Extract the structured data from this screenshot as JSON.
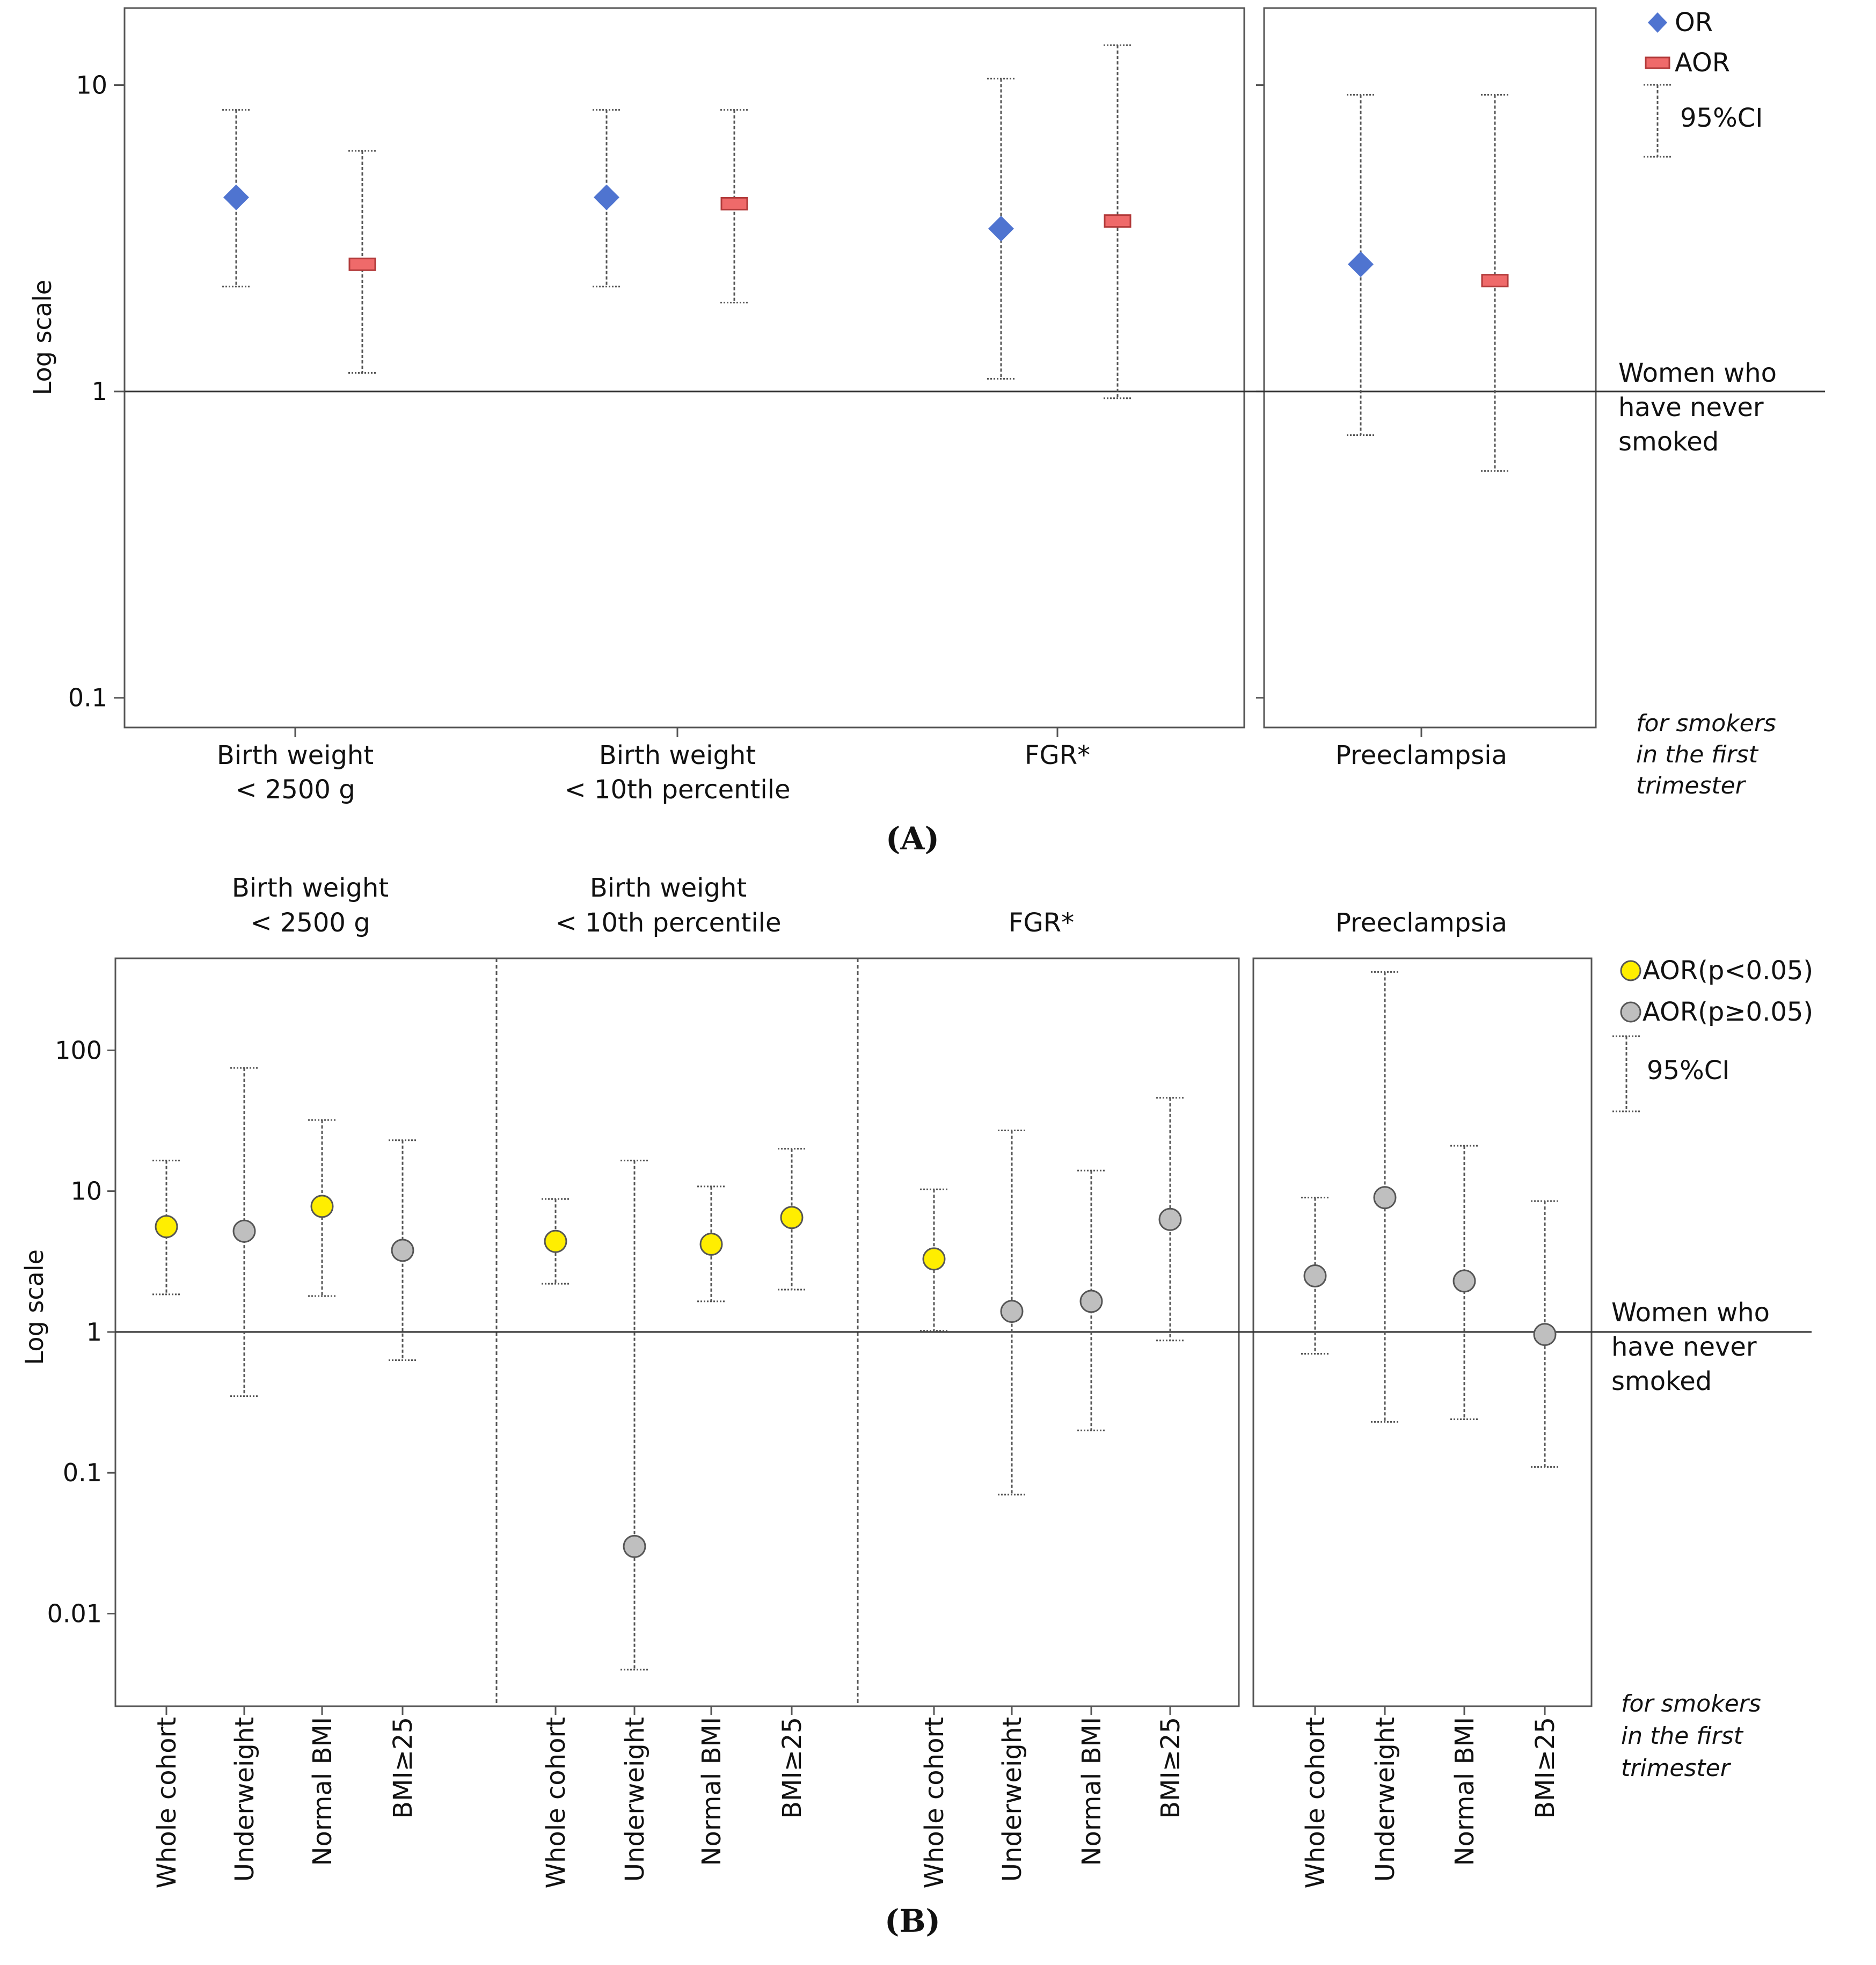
{
  "panel_labels": {
    "a": "(A)",
    "b": "(B)"
  },
  "chart_data": [
    {
      "type": "scatter",
      "panel": "A",
      "y_scale": "log",
      "ylabel": "Log scale",
      "yticks": [
        {
          "value": 10,
          "label": "10"
        },
        {
          "value": 1,
          "label": "1"
        },
        {
          "value": 0.1,
          "label": "0.1"
        }
      ],
      "ylim": [
        0.08,
        16
      ],
      "reference": {
        "value": 1,
        "label_lines": [
          "Women who",
          "have never",
          "smoked"
        ]
      },
      "footnote_lines": [
        "for smokers",
        "in the first",
        "trimester"
      ],
      "legend": {
        "or": "OR",
        "aor": "AOR",
        "ci": "95%CI"
      },
      "colors": {
        "or": "#4f74d0",
        "aor": "#ef6a6a",
        "aor_border": "#b23a3a"
      },
      "groups": [
        {
          "label_lines": [
            "Birth weight",
            "< 2500 g"
          ],
          "or": {
            "value": 4.3,
            "ci": [
              2.2,
              8.3
            ]
          },
          "aor": {
            "value": 2.6,
            "ci": [
              1.15,
              6.1
            ]
          }
        },
        {
          "label_lines": [
            "Birth weight",
            "< 10th percentile"
          ],
          "or": {
            "value": 4.3,
            "ci": [
              2.2,
              8.3
            ]
          },
          "aor": {
            "value": 4.1,
            "ci": [
              1.95,
              8.3
            ]
          }
        },
        {
          "label_lines": [
            "FGR*"
          ],
          "or": {
            "value": 3.4,
            "ci": [
              1.1,
              10.5
            ]
          },
          "aor": {
            "value": 3.6,
            "ci": [
              0.95,
              13.5
            ]
          }
        },
        {
          "label_lines": [
            "Preeclampsia"
          ],
          "or": {
            "value": 2.6,
            "ci": [
              0.72,
              9.3
            ]
          },
          "aor": {
            "value": 2.3,
            "ci": [
              0.55,
              9.3
            ]
          }
        }
      ]
    },
    {
      "type": "scatter",
      "panel": "B",
      "y_scale": "log",
      "ylabel": "Log scale",
      "yticks": [
        {
          "value": 100,
          "label": "100"
        },
        {
          "value": 10,
          "label": "10"
        },
        {
          "value": 1,
          "label": "1"
        },
        {
          "value": 0.1,
          "label": "0.1"
        },
        {
          "value": 0.01,
          "label": "0.01"
        }
      ],
      "ylim": [
        0.0022,
        450
      ],
      "reference": {
        "value": 1,
        "label_lines": [
          "Women who",
          "have never",
          "smoked"
        ]
      },
      "footnote_lines": [
        "for smokers",
        "in the first",
        "trimester"
      ],
      "legend": {
        "sig": "AOR(p<0.05)",
        "nonsig": "AOR(p≥0.05)",
        "ci": "95%CI"
      },
      "colors": {
        "sig": "#ffee00",
        "nonsig": "#bfbfbf"
      },
      "groups": [
        {
          "label_lines": [
            "Birth weight",
            "< 2500 g"
          ],
          "points": [
            {
              "category": "Whole cohort",
              "aor": 5.6,
              "ci": [
                1.85,
                16.5
              ],
              "significant": true
            },
            {
              "category": "Underweight",
              "aor": 5.2,
              "ci": [
                0.35,
                75
              ],
              "significant": false
            },
            {
              "category": "Normal BMI",
              "aor": 7.8,
              "ci": [
                1.8,
                32
              ],
              "significant": true
            },
            {
              "category": "BMI≥25",
              "aor": 3.8,
              "ci": [
                0.63,
                23
              ],
              "significant": false
            }
          ]
        },
        {
          "label_lines": [
            "Birth weight",
            "< 10th percentile"
          ],
          "points": [
            {
              "category": "Whole cohort",
              "aor": 4.4,
              "ci": [
                2.2,
                8.8
              ],
              "significant": true
            },
            {
              "category": "Underweight",
              "aor": 0.03,
              "ci": [
                0.004,
                16.5
              ],
              "significant": false
            },
            {
              "category": "Normal BMI",
              "aor": 4.2,
              "ci": [
                1.65,
                10.8
              ],
              "significant": true
            },
            {
              "category": "BMI≥25",
              "aor": 6.5,
              "ci": [
                2.0,
                20
              ],
              "significant": true
            }
          ]
        },
        {
          "label_lines": [
            "FGR*"
          ],
          "points": [
            {
              "category": "Whole cohort",
              "aor": 3.3,
              "ci": [
                1.02,
                10.3
              ],
              "significant": true
            },
            {
              "category": "Underweight",
              "aor": 1.4,
              "ci": [
                0.07,
                27
              ],
              "significant": false
            },
            {
              "category": "Normal BMI",
              "aor": 1.65,
              "ci": [
                0.2,
                14
              ],
              "significant": false
            },
            {
              "category": "BMI≥25",
              "aor": 6.3,
              "ci": [
                0.87,
                46
              ],
              "significant": false
            }
          ]
        },
        {
          "label_lines": [
            "Preeclampsia"
          ],
          "points": [
            {
              "category": "Whole cohort",
              "aor": 2.5,
              "ci": [
                0.7,
                9
              ],
              "significant": false
            },
            {
              "category": "Underweight",
              "aor": 9.0,
              "ci": [
                0.23,
                360
              ],
              "significant": false
            },
            {
              "category": "Normal BMI",
              "aor": 2.3,
              "ci": [
                0.24,
                21
              ],
              "significant": false
            },
            {
              "category": "BMI≥25",
              "aor": 0.96,
              "ci": [
                0.11,
                8.5
              ],
              "significant": false
            }
          ]
        }
      ]
    }
  ]
}
